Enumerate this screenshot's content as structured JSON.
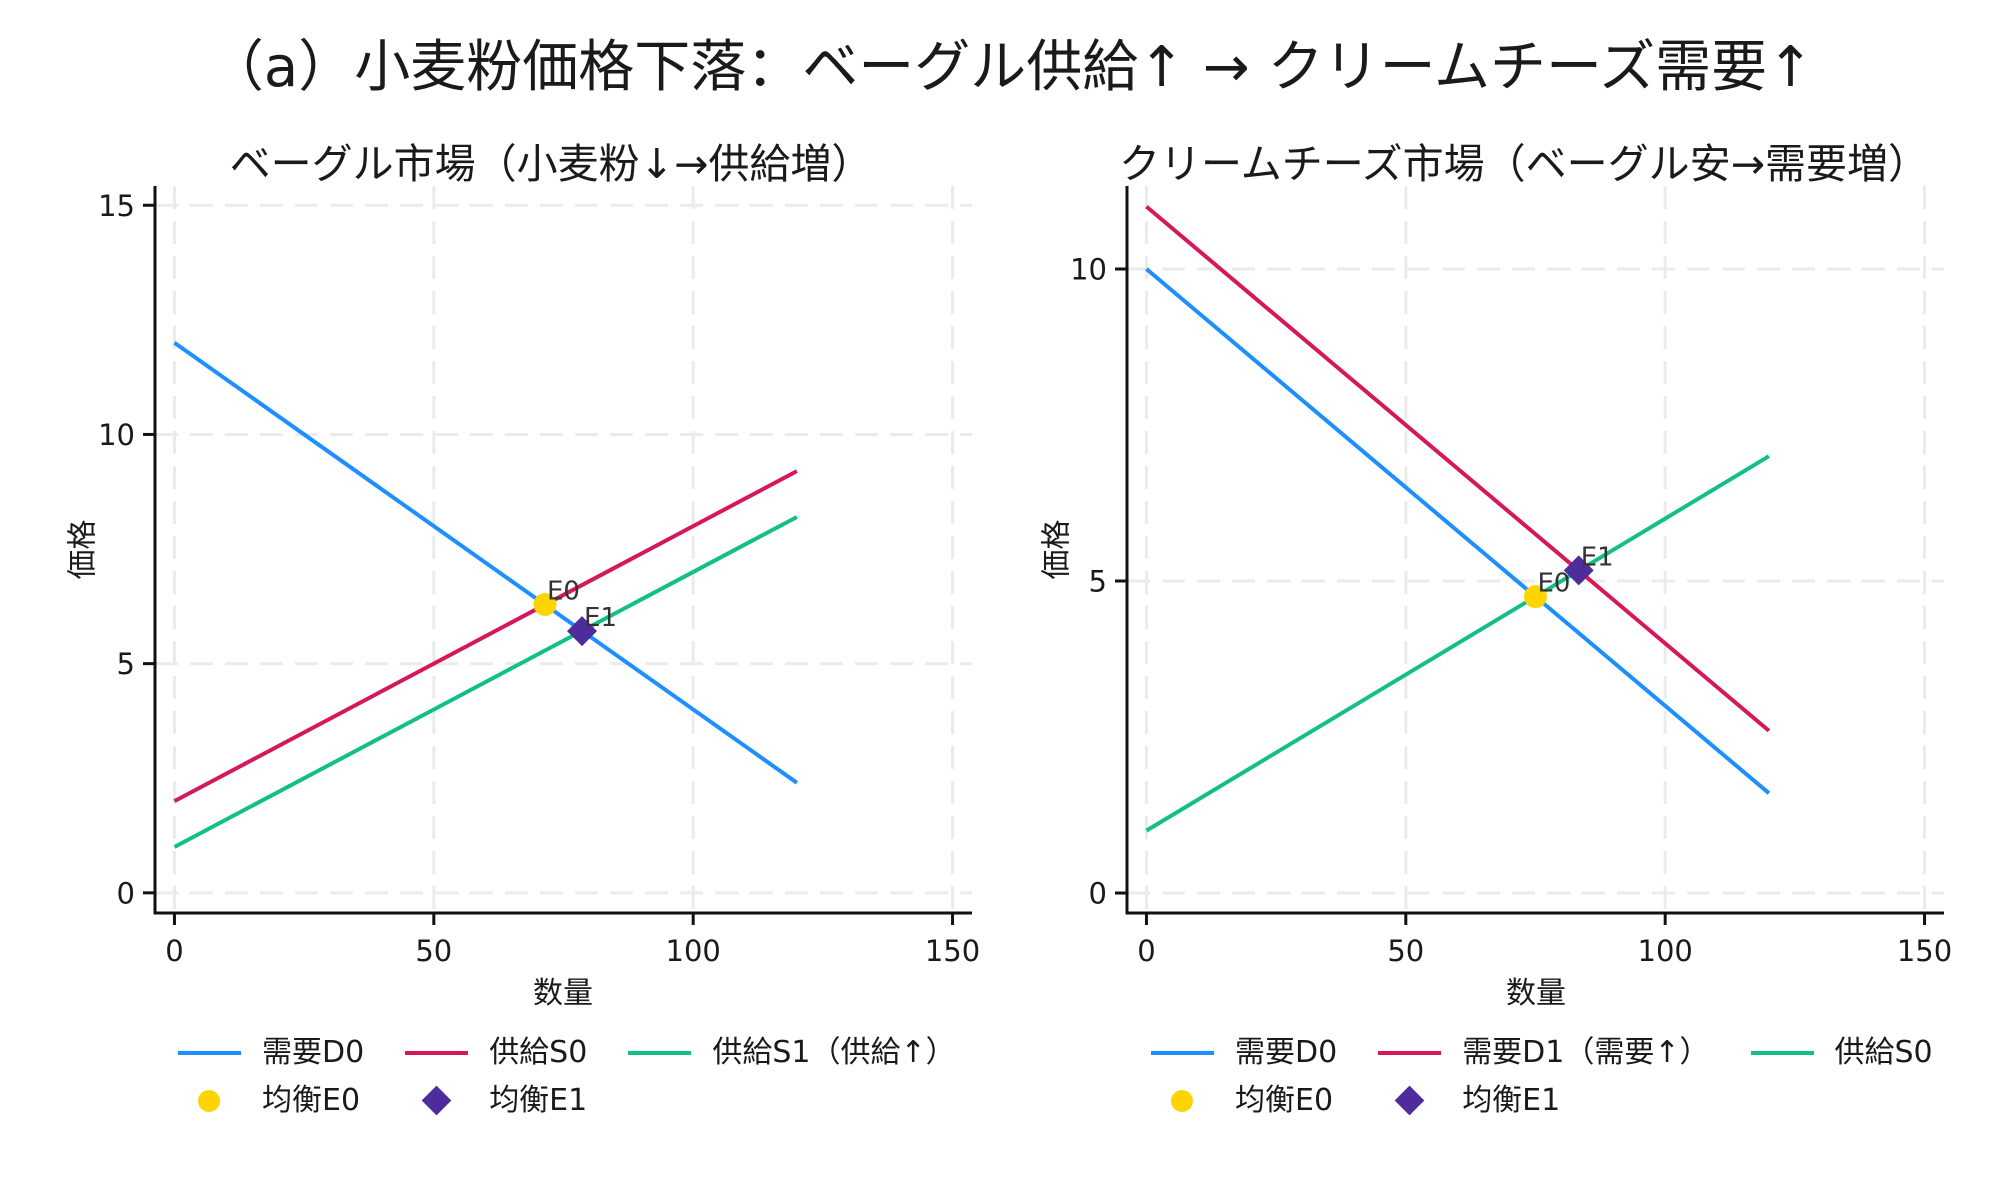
{
  "figure": {
    "title": "（a）小麦粉価格下落：ベーグル供給↑ → クリームチーズ需要↑"
  },
  "chart_data": [
    {
      "type": "line",
      "title": "ベーグル市場（小麦粉↓→供給増）",
      "xlabel": "数量",
      "ylabel": "価格",
      "xlim": [
        -3.75,
        153.75
      ],
      "ylim": [
        -0.44,
        15.42
      ],
      "xticks": [
        0,
        50,
        100,
        150
      ],
      "xtick_labels": [
        "0",
        "50",
        "100",
        "150"
      ],
      "yticks": [
        0,
        5,
        10,
        15
      ],
      "ytick_labels": [
        "0",
        "5",
        "10",
        "15"
      ],
      "grid": true,
      "legend_position": "bottom",
      "series": [
        {
          "name": "需要D0",
          "color": "#1e8fff",
          "x": [
            0,
            120
          ],
          "y": [
            12,
            2.4
          ]
        },
        {
          "name": "供給S0",
          "color": "#d6185a",
          "x": [
            0,
            120
          ],
          "y": [
            2,
            9.2
          ]
        },
        {
          "name": "供給S1（供給↑）",
          "color": "#12c087",
          "x": [
            0,
            120
          ],
          "y": [
            1,
            8.2
          ]
        }
      ],
      "points": [
        {
          "name": "均衡E0",
          "label": "E0",
          "marker": "circle",
          "color": "#ffd400",
          "x": 71.43,
          "y": 6.29
        },
        {
          "name": "均衡E1",
          "label": "E1",
          "marker": "diamond",
          "color": "#4f2c9c",
          "x": 78.57,
          "y": 5.71
        }
      ]
    },
    {
      "type": "line",
      "title": "クリームチーズ市場（ベーグル安→需要増）",
      "xlabel": "数量",
      "ylabel": "価格",
      "xlim": [
        -3.75,
        153.75
      ],
      "ylim": [
        -0.32,
        11.33
      ],
      "xticks": [
        0,
        50,
        100,
        150
      ],
      "xtick_labels": [
        "0",
        "50",
        "100",
        "150"
      ],
      "yticks": [
        0,
        5,
        10
      ],
      "ytick_labels": [
        "0",
        "5",
        "10"
      ],
      "grid": true,
      "legend_position": "bottom",
      "series": [
        {
          "name": "需要D0",
          "color": "#1e8fff",
          "x": [
            0,
            120
          ],
          "y": [
            10,
            1.6
          ]
        },
        {
          "name": "需要D1（需要↑）",
          "color": "#d6185a",
          "x": [
            0,
            120
          ],
          "y": [
            11,
            2.6
          ]
        },
        {
          "name": "供給S0",
          "color": "#12c087",
          "x": [
            0,
            120
          ],
          "y": [
            1,
            7
          ]
        }
      ],
      "points": [
        {
          "name": "均衡E0",
          "label": "E0",
          "marker": "circle",
          "color": "#ffd400",
          "x": 75,
          "y": 4.75
        },
        {
          "name": "均衡E1",
          "label": "E1",
          "marker": "diamond",
          "color": "#4f2c9c",
          "x": 83.33,
          "y": 5.17
        }
      ]
    }
  ]
}
